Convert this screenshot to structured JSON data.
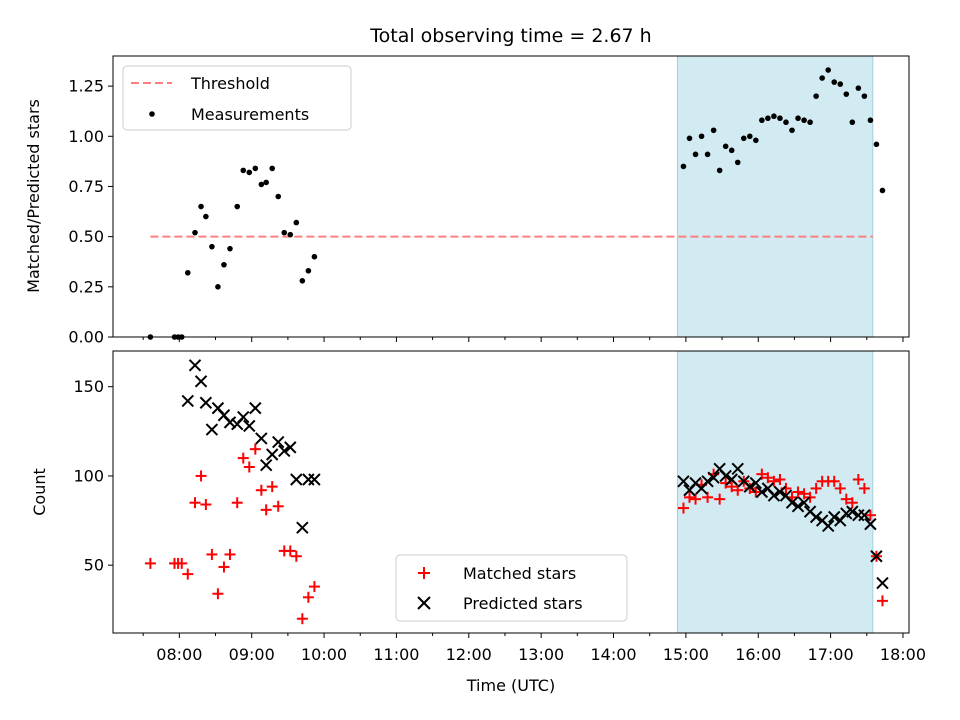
{
  "chart_data": {
    "type": "scatter",
    "title": "Total observing time = 2.67 h",
    "xlabel": "Time (UTC)",
    "x_ticks": [
      "08:00",
      "09:00",
      "10:00",
      "11:00",
      "12:00",
      "13:00",
      "14:00",
      "15:00",
      "16:00",
      "17:00",
      "18:00"
    ],
    "x_range": [
      "07:05",
      "18:05"
    ],
    "highlight_span": [
      "14:53",
      "17:35"
    ],
    "highlight_color": "#add8e6",
    "top": {
      "ylabel": "Matched/Predicted stars",
      "ylim": [
        0,
        1.4
      ],
      "y_ticks": [
        "0.00",
        "0.25",
        "0.50",
        "0.75",
        "1.00",
        "1.25"
      ],
      "threshold": {
        "name": "Threshold",
        "value": 0.5,
        "x_from": "07:36",
        "x_to": "17:35",
        "color": "#ff7f7f"
      },
      "measurements": {
        "name": "Measurements",
        "color": "#000000",
        "points": [
          [
            "07:36",
            0.0
          ],
          [
            "07:56",
            0.0
          ],
          [
            "07:59",
            0.0
          ],
          [
            "08:02",
            0.0
          ],
          [
            "08:07",
            0.32
          ],
          [
            "08:13",
            0.52
          ],
          [
            "08:18",
            0.65
          ],
          [
            "08:22",
            0.6
          ],
          [
            "08:27",
            0.45
          ],
          [
            "08:32",
            0.25
          ],
          [
            "08:37",
            0.36
          ],
          [
            "08:42",
            0.44
          ],
          [
            "08:48",
            0.65
          ],
          [
            "08:53",
            0.83
          ],
          [
            "08:58",
            0.82
          ],
          [
            "09:03",
            0.84
          ],
          [
            "09:08",
            0.76
          ],
          [
            "09:12",
            0.77
          ],
          [
            "09:17",
            0.84
          ],
          [
            "09:22",
            0.7
          ],
          [
            "09:27",
            0.52
          ],
          [
            "09:32",
            0.51
          ],
          [
            "09:37",
            0.57
          ],
          [
            "09:42",
            0.28
          ],
          [
            "09:47",
            0.33
          ],
          [
            "09:52",
            0.4
          ],
          [
            "14:58",
            0.85
          ],
          [
            "15:03",
            0.99
          ],
          [
            "15:08",
            0.91
          ],
          [
            "15:13",
            1.0
          ],
          [
            "15:18",
            0.91
          ],
          [
            "15:23",
            1.03
          ],
          [
            "15:28",
            0.83
          ],
          [
            "15:33",
            0.95
          ],
          [
            "15:38",
            0.93
          ],
          [
            "15:43",
            0.87
          ],
          [
            "15:48",
            0.99
          ],
          [
            "15:53",
            1.0
          ],
          [
            "15:58",
            0.98
          ],
          [
            "16:03",
            1.08
          ],
          [
            "16:08",
            1.09
          ],
          [
            "16:13",
            1.1
          ],
          [
            "16:18",
            1.09
          ],
          [
            "16:23",
            1.07
          ],
          [
            "16:28",
            1.03
          ],
          [
            "16:33",
            1.09
          ],
          [
            "16:38",
            1.08
          ],
          [
            "16:43",
            1.07
          ],
          [
            "16:48",
            1.2
          ],
          [
            "16:53",
            1.29
          ],
          [
            "16:58",
            1.33
          ],
          [
            "17:03",
            1.27
          ],
          [
            "17:08",
            1.26
          ],
          [
            "17:13",
            1.21
          ],
          [
            "17:18",
            1.07
          ],
          [
            "17:23",
            1.24
          ],
          [
            "17:28",
            1.2
          ],
          [
            "17:33",
            1.08
          ],
          [
            "17:38",
            0.96
          ],
          [
            "17:43",
            0.73
          ]
        ]
      }
    },
    "bottom": {
      "ylabel": "Count",
      "ylim": [
        12,
        170
      ],
      "y_ticks": [
        "50",
        "100",
        "150"
      ],
      "matched": {
        "name": "Matched stars",
        "color": "#ff0000",
        "points": [
          [
            "07:36",
            51
          ],
          [
            "07:56",
            51
          ],
          [
            "07:59",
            51
          ],
          [
            "08:02",
            51
          ],
          [
            "08:07",
            45
          ],
          [
            "08:13",
            85
          ],
          [
            "08:18",
            100
          ],
          [
            "08:22",
            84
          ],
          [
            "08:27",
            56
          ],
          [
            "08:32",
            34
          ],
          [
            "08:37",
            49
          ],
          [
            "08:42",
            56
          ],
          [
            "08:48",
            85
          ],
          [
            "08:53",
            110
          ],
          [
            "08:58",
            105
          ],
          [
            "09:03",
            115
          ],
          [
            "09:08",
            92
          ],
          [
            "09:12",
            81
          ],
          [
            "09:17",
            94
          ],
          [
            "09:22",
            83
          ],
          [
            "09:27",
            58
          ],
          [
            "09:32",
            58
          ],
          [
            "09:37",
            55
          ],
          [
            "09:42",
            20
          ],
          [
            "09:47",
            32
          ],
          [
            "09:52",
            38
          ],
          [
            "14:58",
            82
          ],
          [
            "15:03",
            88
          ],
          [
            "15:08",
            87
          ],
          [
            "15:13",
            95
          ],
          [
            "15:18",
            88
          ],
          [
            "15:23",
            101
          ],
          [
            "15:28",
            87
          ],
          [
            "15:33",
            96
          ],
          [
            "15:38",
            94
          ],
          [
            "15:43",
            92
          ],
          [
            "15:48",
            97
          ],
          [
            "15:53",
            93
          ],
          [
            "15:58",
            91
          ],
          [
            "16:03",
            101
          ],
          [
            "16:08",
            99
          ],
          [
            "16:13",
            97
          ],
          [
            "16:18",
            98
          ],
          [
            "16:23",
            93
          ],
          [
            "16:28",
            88
          ],
          [
            "16:33",
            91
          ],
          [
            "16:38",
            90
          ],
          [
            "16:43",
            88
          ],
          [
            "16:48",
            93
          ],
          [
            "16:53",
            97
          ],
          [
            "16:58",
            97
          ],
          [
            "17:03",
            97
          ],
          [
            "17:08",
            93
          ],
          [
            "17:13",
            87
          ],
          [
            "17:18",
            85
          ],
          [
            "17:23",
            98
          ],
          [
            "17:28",
            93
          ],
          [
            "17:33",
            78
          ],
          [
            "17:38",
            55
          ],
          [
            "17:43",
            30
          ]
        ]
      },
      "predicted": {
        "name": "Predicted stars",
        "color": "#000000",
        "points": [
          [
            "08:07",
            142
          ],
          [
            "08:13",
            162
          ],
          [
            "08:18",
            153
          ],
          [
            "08:22",
            141
          ],
          [
            "08:27",
            126
          ],
          [
            "08:32",
            138
          ],
          [
            "08:37",
            134
          ],
          [
            "08:42",
            130
          ],
          [
            "08:48",
            129
          ],
          [
            "08:53",
            133
          ],
          [
            "08:58",
            128
          ],
          [
            "09:03",
            138
          ],
          [
            "09:08",
            121
          ],
          [
            "09:12",
            106
          ],
          [
            "09:17",
            112
          ],
          [
            "09:22",
            119
          ],
          [
            "09:27",
            114
          ],
          [
            "09:32",
            116
          ],
          [
            "09:37",
            98
          ],
          [
            "09:42",
            71
          ],
          [
            "09:47",
            98
          ],
          [
            "09:52",
            98
          ],
          [
            "14:58",
            97
          ],
          [
            "15:03",
            92
          ],
          [
            "15:08",
            96
          ],
          [
            "15:13",
            93
          ],
          [
            "15:18",
            97
          ],
          [
            "15:23",
            99
          ],
          [
            "15:28",
            104
          ],
          [
            "15:33",
            100
          ],
          [
            "15:38",
            98
          ],
          [
            "15:43",
            104
          ],
          [
            "15:48",
            97
          ],
          [
            "15:53",
            94
          ],
          [
            "15:58",
            96
          ],
          [
            "16:03",
            91
          ],
          [
            "16:08",
            93
          ],
          [
            "16:13",
            89
          ],
          [
            "16:18",
            91
          ],
          [
            "16:23",
            89
          ],
          [
            "16:28",
            85
          ],
          [
            "16:33",
            83
          ],
          [
            "16:38",
            85
          ],
          [
            "16:43",
            80
          ],
          [
            "16:48",
            77
          ],
          [
            "16:53",
            75
          ],
          [
            "16:58",
            72
          ],
          [
            "17:03",
            77
          ],
          [
            "17:08",
            75
          ],
          [
            "17:13",
            79
          ],
          [
            "17:18",
            80
          ],
          [
            "17:23",
            78
          ],
          [
            "17:28",
            78
          ],
          [
            "17:33",
            73
          ],
          [
            "17:38",
            55
          ],
          [
            "17:43",
            40
          ]
        ]
      }
    }
  }
}
